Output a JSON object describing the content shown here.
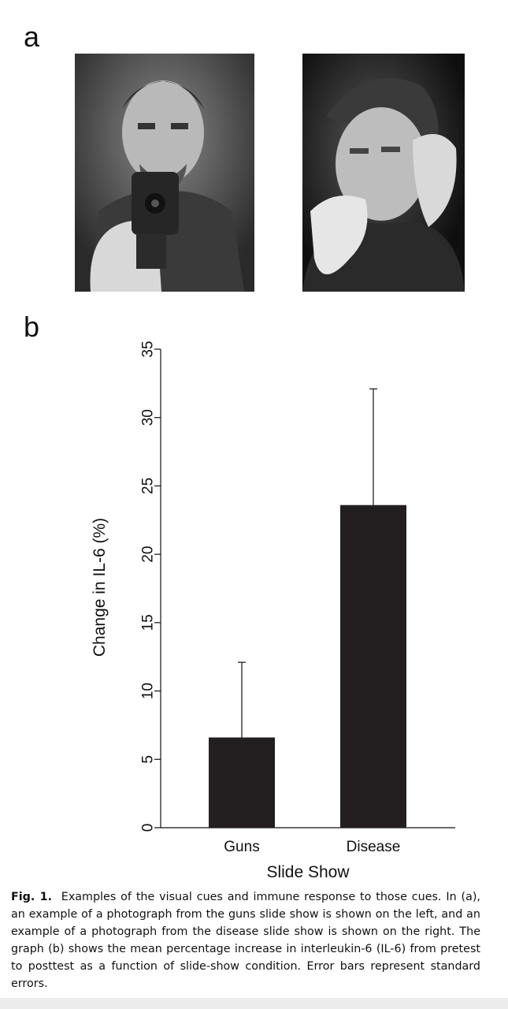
{
  "panels": {
    "a_label": "a",
    "b_label": "b"
  },
  "photos": {
    "left_icon": "person-aiming-gun-photo",
    "right_icon": "sick-woman-coughing-photo"
  },
  "chart_data": {
    "type": "bar",
    "categories": [
      "Guns",
      "Disease"
    ],
    "values": [
      6.6,
      23.6
    ],
    "errors_upper": [
      12.1,
      32.1
    ],
    "xlabel": "Slide Show",
    "ylabel": "Change in IL-6 (%)",
    "ylim": [
      0,
      35
    ],
    "yticks": [
      "0",
      "5",
      "10",
      "15",
      "20",
      "25",
      "30",
      "35"
    ],
    "bar_color": "#231f20",
    "grid": false
  },
  "caption": {
    "fig_id": "Fig. 1.",
    "text": "Examples of the visual cues and immune response to those cues. In (a), an example of a photograph from the guns slide show is shown on the left, and an example of a photograph from the disease slide show is shown on the right. The graph (b) shows the mean percentage increase in interleukin-6 (IL-6) from pretest to posttest as a function of slide-show condition. Error bars represent standard errors."
  }
}
